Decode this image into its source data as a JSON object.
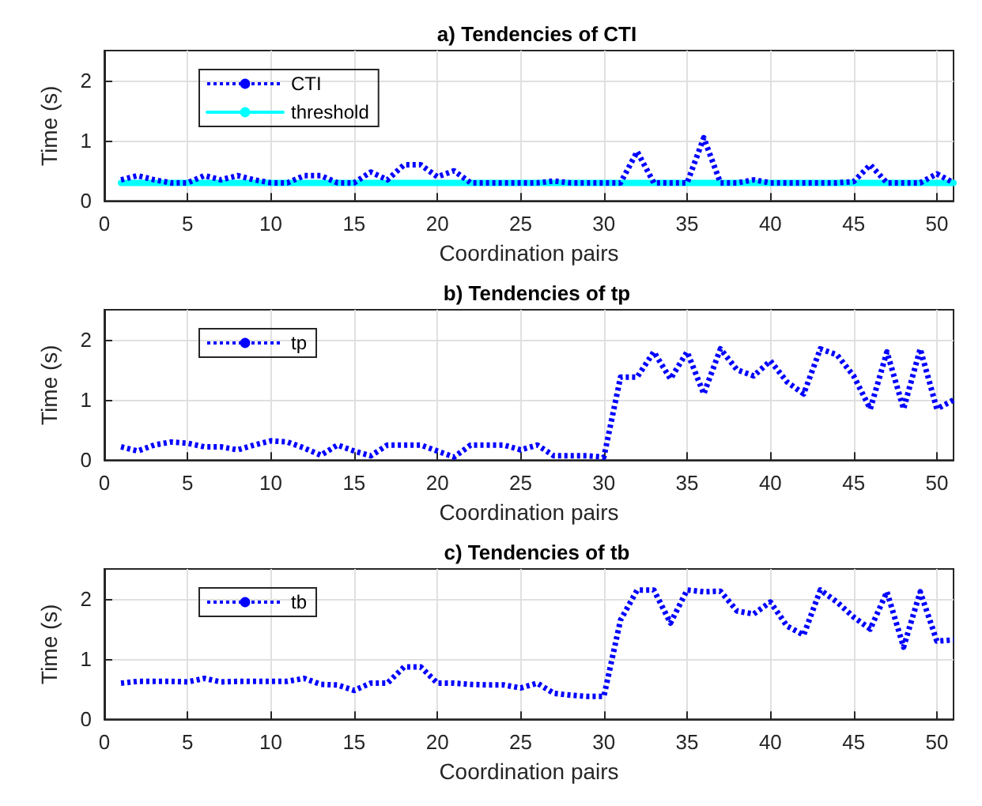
{
  "chart_data": [
    {
      "type": "line",
      "title": "a) Tendencies of CTI",
      "xlabel": "Coordination pairs",
      "ylabel": "Time (s)",
      "x": [
        1,
        2,
        3,
        4,
        5,
        6,
        7,
        8,
        9,
        10,
        11,
        12,
        13,
        14,
        15,
        16,
        17,
        18,
        19,
        20,
        21,
        22,
        23,
        24,
        25,
        26,
        27,
        28,
        29,
        30,
        31,
        32,
        33,
        34,
        35,
        36,
        37,
        38,
        39,
        40,
        41,
        42,
        43,
        44,
        45,
        46,
        47,
        48,
        49,
        50,
        51
      ],
      "series": [
        {
          "name": "CTI",
          "color": "#0000ff",
          "line_style": "dotted",
          "values": [
            0.35,
            0.42,
            0.35,
            0.3,
            0.3,
            0.42,
            0.35,
            0.42,
            0.35,
            0.3,
            0.3,
            0.42,
            0.42,
            0.3,
            0.3,
            0.48,
            0.35,
            0.6,
            0.6,
            0.4,
            0.5,
            0.3,
            0.3,
            0.3,
            0.3,
            0.3,
            0.33,
            0.3,
            0.3,
            0.3,
            0.3,
            0.82,
            0.3,
            0.3,
            0.3,
            1.05,
            0.3,
            0.3,
            0.35,
            0.3,
            0.3,
            0.3,
            0.3,
            0.3,
            0.32,
            0.6,
            0.3,
            0.3,
            0.3,
            0.45,
            0.3
          ]
        },
        {
          "name": "threshold",
          "color": "#00ffff",
          "line_style": "solid",
          "values": [
            0.3,
            0.3,
            0.3,
            0.3,
            0.3,
            0.3,
            0.3,
            0.3,
            0.3,
            0.3,
            0.3,
            0.3,
            0.3,
            0.3,
            0.3,
            0.3,
            0.3,
            0.3,
            0.3,
            0.3,
            0.3,
            0.3,
            0.3,
            0.3,
            0.3,
            0.3,
            0.3,
            0.3,
            0.3,
            0.3,
            0.3,
            0.3,
            0.3,
            0.3,
            0.3,
            0.3,
            0.3,
            0.3,
            0.3,
            0.3,
            0.3,
            0.3,
            0.3,
            0.3,
            0.3,
            0.3,
            0.3,
            0.3,
            0.3,
            0.3,
            0.3
          ]
        }
      ],
      "xlim": [
        0,
        51
      ],
      "xticks": [
        0,
        5,
        10,
        15,
        20,
        25,
        30,
        35,
        40,
        45,
        50
      ],
      "ylim": [
        0,
        2.5
      ],
      "yticks": [
        0,
        1,
        2
      ],
      "grid": true,
      "legend": "top left",
      "marker": "none"
    },
    {
      "type": "line",
      "title": "b) Tendencies of tp",
      "xlabel": "Coordination pairs",
      "ylabel": "Time (s)",
      "x": [
        1,
        2,
        3,
        4,
        5,
        6,
        7,
        8,
        9,
        10,
        11,
        12,
        13,
        14,
        15,
        16,
        17,
        18,
        19,
        20,
        21,
        22,
        23,
        24,
        25,
        26,
        27,
        28,
        29,
        30,
        31,
        32,
        33,
        34,
        35,
        36,
        37,
        38,
        39,
        40,
        41,
        42,
        43,
        44,
        45,
        46,
        47,
        48,
        49,
        50,
        51
      ],
      "series": [
        {
          "name": "tp",
          "color": "#0000ff",
          "line_style": "dotted",
          "values": [
            0.22,
            0.15,
            0.25,
            0.3,
            0.28,
            0.22,
            0.22,
            0.17,
            0.25,
            0.32,
            0.3,
            0.2,
            0.08,
            0.25,
            0.15,
            0.07,
            0.25,
            0.25,
            0.25,
            0.15,
            0.05,
            0.25,
            0.25,
            0.25,
            0.17,
            0.25,
            0.07,
            0.07,
            0.07,
            0.05,
            1.38,
            1.38,
            1.8,
            1.35,
            1.8,
            1.1,
            1.85,
            1.5,
            1.4,
            1.65,
            1.3,
            1.1,
            1.85,
            1.75,
            1.4,
            0.85,
            1.8,
            0.85,
            1.85,
            0.85,
            1.0
          ]
        }
      ],
      "xlim": [
        0,
        51
      ],
      "xticks": [
        0,
        5,
        10,
        15,
        20,
        25,
        30,
        35,
        40,
        45,
        50
      ],
      "ylim": [
        0,
        2.5
      ],
      "yticks": [
        0,
        1,
        2
      ],
      "grid": true,
      "legend": "top left",
      "marker": "none"
    },
    {
      "type": "line",
      "title": "c) Tendencies of tb",
      "xlabel": "Coordination pairs",
      "ylabel": "Time (s)",
      "x": [
        1,
        2,
        3,
        4,
        5,
        6,
        7,
        8,
        9,
        10,
        11,
        12,
        13,
        14,
        15,
        16,
        17,
        18,
        19,
        20,
        21,
        22,
        23,
        24,
        25,
        26,
        27,
        28,
        29,
        30,
        31,
        32,
        33,
        34,
        35,
        36,
        37,
        38,
        39,
        40,
        41,
        42,
        43,
        44,
        45,
        46,
        47,
        48,
        49,
        50,
        51
      ],
      "series": [
        {
          "name": "tb",
          "color": "#0000ff",
          "line_style": "dotted",
          "values": [
            0.6,
            0.63,
            0.63,
            0.63,
            0.62,
            0.68,
            0.62,
            0.63,
            0.63,
            0.63,
            0.63,
            0.68,
            0.58,
            0.57,
            0.48,
            0.6,
            0.6,
            0.87,
            0.87,
            0.6,
            0.6,
            0.58,
            0.57,
            0.57,
            0.52,
            0.6,
            0.43,
            0.4,
            0.38,
            0.38,
            1.65,
            2.15,
            2.15,
            1.6,
            2.15,
            2.12,
            2.13,
            1.8,
            1.75,
            1.95,
            1.55,
            1.4,
            2.15,
            1.95,
            1.7,
            1.5,
            2.12,
            1.2,
            2.12,
            1.3,
            1.32
          ]
        }
      ],
      "xlim": [
        0,
        51
      ],
      "xticks": [
        0,
        5,
        10,
        15,
        20,
        25,
        30,
        35,
        40,
        45,
        50
      ],
      "ylim": [
        0,
        2.5
      ],
      "yticks": [
        0,
        1,
        2
      ],
      "grid": true,
      "legend": "top left",
      "marker": "none"
    }
  ]
}
